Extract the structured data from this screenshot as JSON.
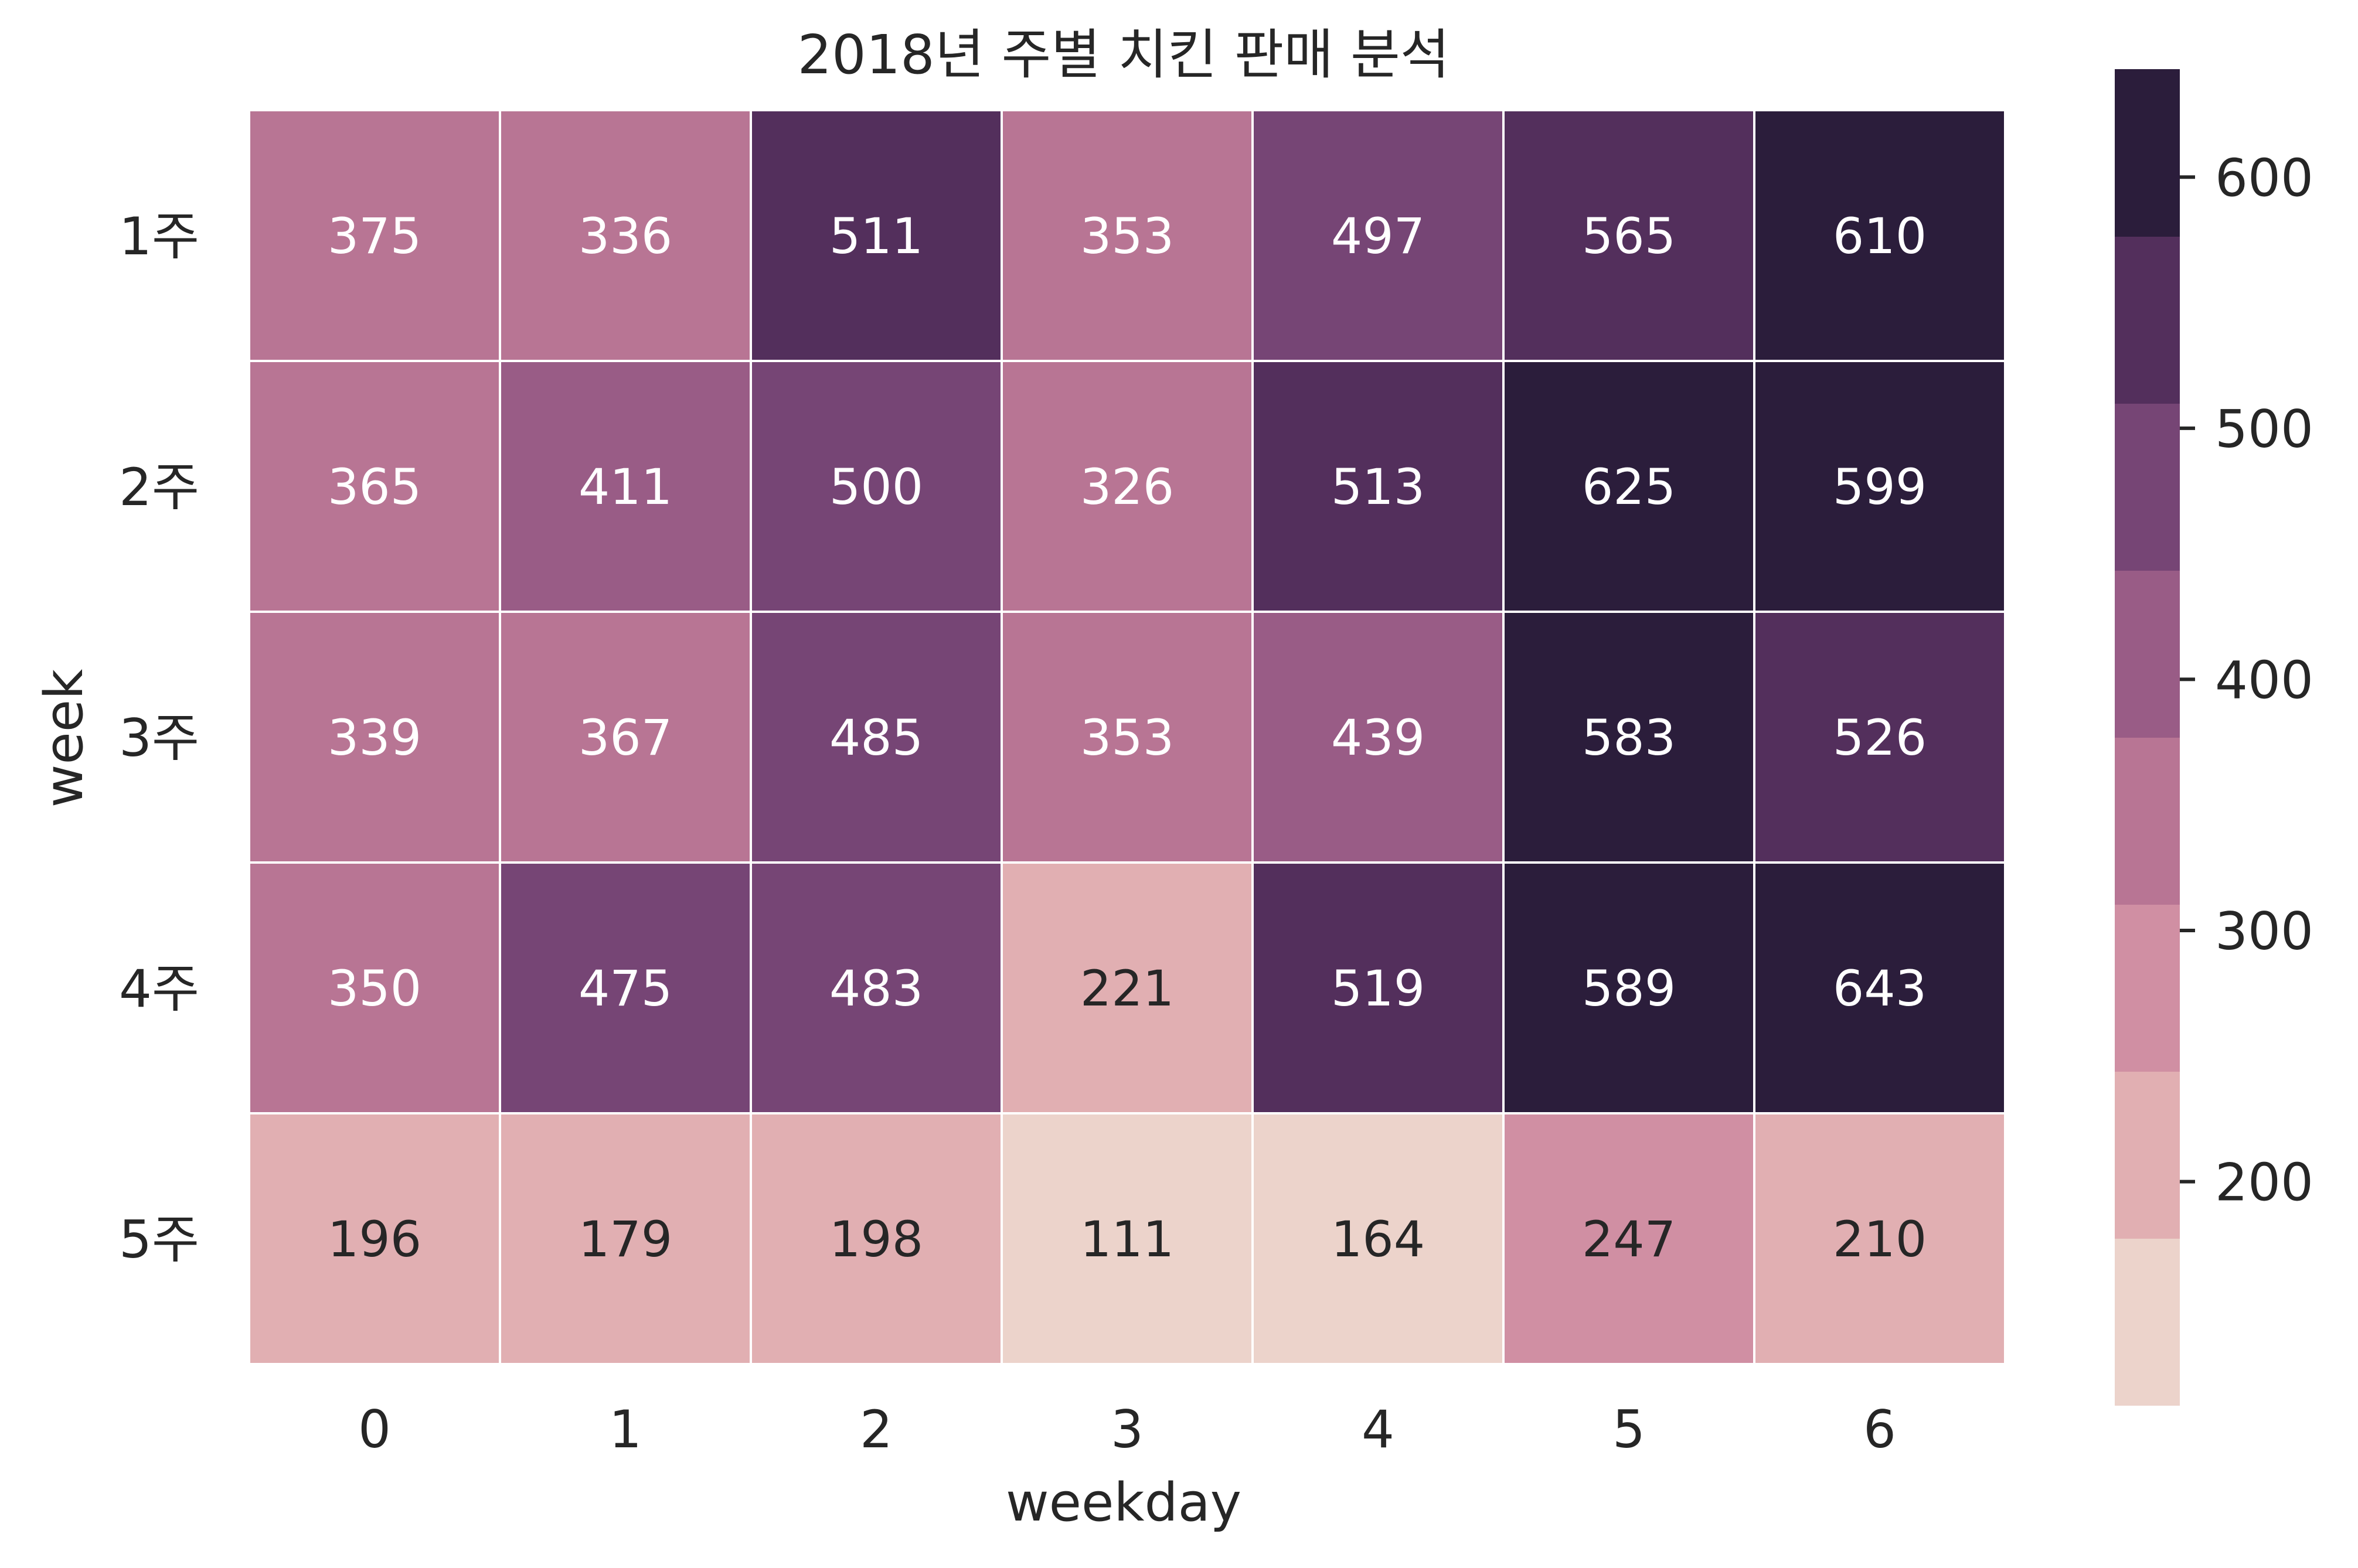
{
  "chart_data": {
    "type": "heatmap",
    "title": "2018년 주별 치킨 판매 분석",
    "xlabel": "weekday",
    "ylabel": "week",
    "x_categories": [
      "0",
      "1",
      "2",
      "3",
      "4",
      "5",
      "6"
    ],
    "y_categories": [
      "1주",
      "2주",
      "3주",
      "4주",
      "5주"
    ],
    "values": [
      [
        375,
        336,
        511,
        353,
        497,
        565,
        610
      ],
      [
        365,
        411,
        500,
        326,
        513,
        625,
        599
      ],
      [
        339,
        367,
        485,
        353,
        439,
        583,
        526
      ],
      [
        350,
        475,
        483,
        221,
        519,
        589,
        643
      ],
      [
        196,
        179,
        198,
        111,
        164,
        247,
        210
      ]
    ],
    "value_range": [
      111,
      643
    ],
    "colorbar": {
      "ticks": [
        200,
        300,
        400,
        500,
        600
      ],
      "levels": [
        "#ecd3cb",
        "#e1afb2",
        "#d08fa3",
        "#b87594",
        "#995c86",
        "#764575",
        "#532f5c",
        "#2b1d3b"
      ]
    },
    "grid": true,
    "legend": "colorbar-right"
  }
}
